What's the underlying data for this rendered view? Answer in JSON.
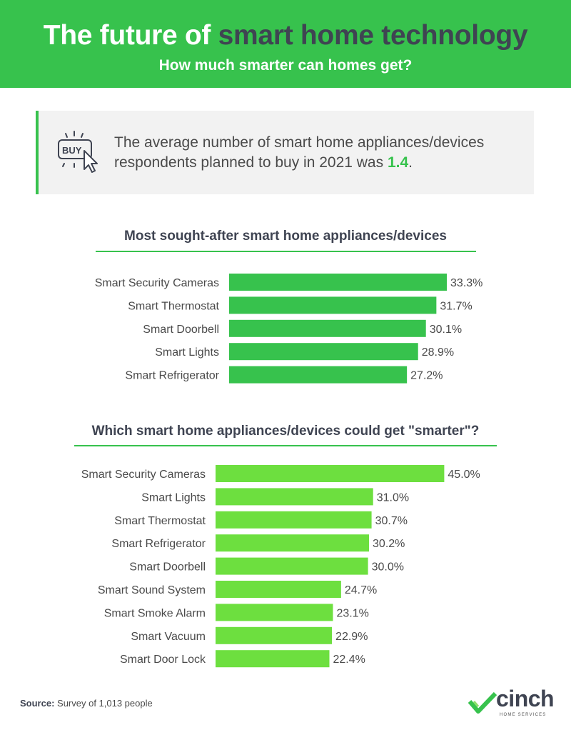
{
  "header": {
    "title_part1": "The future of ",
    "title_part2": "smart home technology",
    "subtitle": "How much smarter can homes get?"
  },
  "stat": {
    "icon": "buy-cursor-icon",
    "icon_label": "BUY",
    "text": "The average number of smart home appliances/devices respondents planned to buy in 2021 was ",
    "value": "1.4",
    "suffix": "."
  },
  "chart_data": [
    {
      "type": "bar",
      "orientation": "horizontal",
      "title": "Most sought-after smart home appliances/devices",
      "categories": [
        "Smart Security Cameras",
        "Smart Thermostat",
        "Smart Doorbell",
        "Smart Lights",
        "Smart Refrigerator"
      ],
      "values": [
        33.3,
        31.7,
        30.1,
        28.9,
        27.2
      ],
      "value_labels": [
        "33.3%",
        "31.7%",
        "30.1%",
        "28.9%",
        "27.2%"
      ],
      "unit": "%",
      "bar_color": "#37c24d"
    },
    {
      "type": "bar",
      "orientation": "horizontal",
      "title": "Which smart home appliances/devices could get \"smarter\"?",
      "categories": [
        "Smart Security Cameras",
        "Smart Lights",
        "Smart Thermostat",
        "Smart Refrigerator",
        "Smart Doorbell",
        "Smart Sound System",
        "Smart Smoke Alarm",
        "Smart Vacuum",
        "Smart Door Lock"
      ],
      "values": [
        45.0,
        31.0,
        30.7,
        30.2,
        30.0,
        24.7,
        23.1,
        22.9,
        22.4
      ],
      "value_labels": [
        "45.0%",
        "31.0%",
        "30.7%",
        "30.2%",
        "30.0%",
        "24.7%",
        "23.1%",
        "22.9%",
        "22.4%"
      ],
      "unit": "%",
      "bar_color": "#6ddf3f"
    }
  ],
  "footer": {
    "source_label": "Source:",
    "source_text": " Survey of 1,013 people",
    "logo_word": "cinch",
    "logo_tagline": "HOME SERVICES"
  },
  "colors": {
    "banner": "#37c24d",
    "accent_dark": "#3f4452",
    "bar_primary": "#37c24d",
    "bar_secondary": "#6ddf3f"
  }
}
